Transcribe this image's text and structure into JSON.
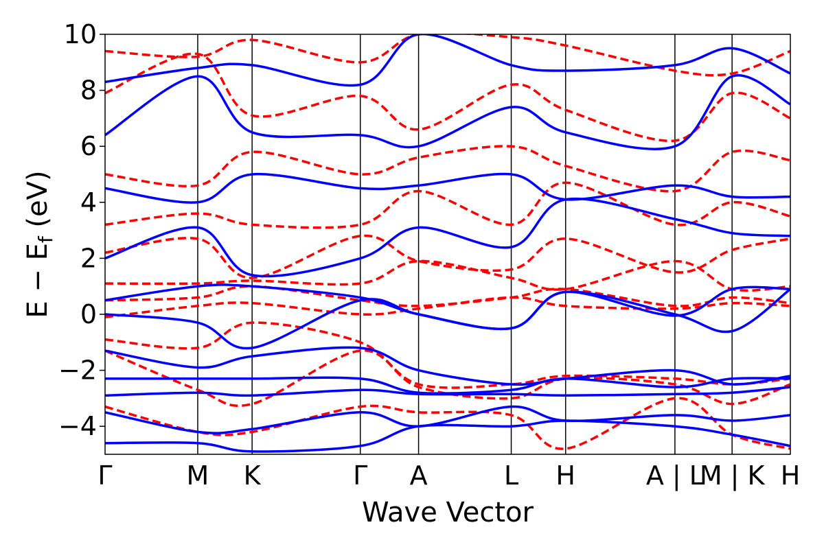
{
  "chart_data": {
    "type": "line",
    "title": "",
    "xlabel": "Wave Vector",
    "ylabel": "E − E",
    "ylabel_sub": "f",
    "ylabel_unit": " (eV)",
    "ylim": [
      -5,
      10
    ],
    "xlim": [
      0,
      12.35
    ],
    "yticks": [
      {
        "value": -4,
        "label": "−4"
      },
      {
        "value": -2,
        "label": "−2"
      },
      {
        "value": 0,
        "label": "0"
      },
      {
        "value": 2,
        "label": "2"
      },
      {
        "value": 4,
        "label": "4"
      },
      {
        "value": 6,
        "label": "6"
      },
      {
        "value": 8,
        "label": "8"
      },
      {
        "value": 10,
        "label": "10"
      }
    ],
    "kpoints": [
      {
        "label": "Γ",
        "x": 0
      },
      {
        "label": "M",
        "x": 1.67
      },
      {
        "label": "K",
        "x": 2.65
      },
      {
        "label": "Γ",
        "x": 4.6
      },
      {
        "label": "A",
        "x": 5.65
      },
      {
        "label": "L",
        "x": 7.32
      },
      {
        "label": "H",
        "x": 8.3
      },
      {
        "label": "A | L",
        "x": 10.27
      },
      {
        "label": "M | K",
        "x": 11.3
      },
      {
        "label": "H",
        "x": 12.35
      }
    ],
    "series": [
      {
        "name": "blue-band-1",
        "color": "#0000ff",
        "style": "solid",
        "x": [
          0,
          1.67,
          2.65,
          4.6,
          5.65,
          7.32,
          8.3,
          10.27,
          11.3,
          12.35
        ],
        "y": [
          -4.6,
          -4.6,
          -4.9,
          -4.7,
          -4.0,
          -4.0,
          -3.8,
          -4.0,
          -4.3,
          -4.7
        ]
      },
      {
        "name": "blue-band-2",
        "color": "#0000ff",
        "style": "solid",
        "x": [
          0,
          1.67,
          2.65,
          4.6,
          5.65,
          7.32,
          8.3,
          10.27,
          11.3,
          12.35
        ],
        "y": [
          -3.5,
          -4.2,
          -4.1,
          -3.5,
          -4.0,
          -3.3,
          -3.8,
          -3.6,
          -3.8,
          -3.6
        ]
      },
      {
        "name": "blue-band-3",
        "color": "#0000ff",
        "style": "solid",
        "x": [
          0,
          1.67,
          2.65,
          4.6,
          5.65,
          7.32,
          8.3,
          10.27,
          11.3,
          12.35
        ],
        "y": [
          -2.9,
          -2.8,
          -2.9,
          -2.7,
          -2.85,
          -2.85,
          -2.9,
          -2.85,
          -2.8,
          -2.6
        ]
      },
      {
        "name": "blue-band-4",
        "color": "#0000ff",
        "style": "solid",
        "x": [
          0,
          1.67,
          2.65,
          4.6,
          5.65,
          7.32,
          8.3,
          10.27,
          11.3,
          12.35
        ],
        "y": [
          -2.3,
          -2.3,
          -2.3,
          -2.3,
          -2.8,
          -2.7,
          -2.3,
          -2.6,
          -2.3,
          -2.3
        ]
      },
      {
        "name": "blue-band-5",
        "color": "#0000ff",
        "style": "solid",
        "x": [
          0,
          1.67,
          2.65,
          4.6,
          5.65,
          7.32,
          8.3,
          10.27,
          11.3,
          12.35
        ],
        "y": [
          -1.3,
          -1.9,
          -1.5,
          -1.2,
          -2.0,
          -2.5,
          -2.3,
          -2.0,
          -2.5,
          -2.2
        ]
      },
      {
        "name": "blue-band-6",
        "color": "#0000ff",
        "style": "solid",
        "x": [
          0,
          1.67,
          2.65,
          4.6,
          5.65,
          7.32,
          8.3,
          10.27,
          11.3,
          12.35
        ],
        "y": [
          0.0,
          -0.3,
          -1.2,
          0.5,
          0.0,
          -0.5,
          0.8,
          0.0,
          -0.6,
          0.9
        ]
      },
      {
        "name": "blue-band-7",
        "color": "#0000ff",
        "style": "solid",
        "x": [
          0,
          1.67,
          2.65,
          4.6,
          5.65,
          7.32,
          8.3,
          10.27,
          11.3,
          12.35
        ],
        "y": [
          0.5,
          1.0,
          1.0,
          0.6,
          0.0,
          -0.5,
          0.8,
          -0.05,
          0.9,
          0.9
        ]
      },
      {
        "name": "blue-band-8",
        "color": "#0000ff",
        "style": "solid",
        "x": [
          0,
          1.67,
          2.65,
          4.6,
          5.65,
          7.32,
          8.3,
          10.27,
          11.3,
          12.35
        ],
        "y": [
          2.0,
          3.1,
          1.4,
          2.0,
          3.1,
          2.4,
          4.1,
          3.4,
          2.9,
          2.8
        ]
      },
      {
        "name": "blue-band-9",
        "color": "#0000ff",
        "style": "solid",
        "x": [
          0,
          1.67,
          2.65,
          4.6,
          5.65,
          7.32,
          8.3,
          10.27,
          11.3,
          12.35
        ],
        "y": [
          4.5,
          4.0,
          5.0,
          4.5,
          4.6,
          5.0,
          4.1,
          4.6,
          4.2,
          4.2
        ]
      },
      {
        "name": "blue-band-10",
        "color": "#0000ff",
        "style": "solid",
        "x": [
          0,
          1.67,
          2.65,
          4.6,
          5.65,
          7.32,
          8.3,
          10.27,
          11.3,
          12.35
        ],
        "y": [
          6.4,
          8.5,
          6.5,
          6.4,
          6.0,
          7.4,
          6.5,
          6.0,
          8.5,
          7.5
        ]
      },
      {
        "name": "blue-band-11",
        "color": "#0000ff",
        "style": "solid",
        "x": [
          0,
          1.67,
          2.65,
          4.6,
          5.65,
          7.32,
          8.3,
          10.27,
          11.3,
          12.35
        ],
        "y": [
          8.3,
          8.8,
          8.9,
          8.2,
          10.0,
          8.9,
          8.7,
          8.9,
          9.5,
          8.6
        ]
      },
      {
        "name": "red-band-1",
        "color": "#ff0000",
        "style": "dashed",
        "x": [
          0,
          1.67,
          2.65,
          4.6,
          5.65,
          7.32,
          8.3,
          10.27,
          11.3,
          12.35
        ],
        "y": [
          -3.3,
          -4.2,
          -4.2,
          -3.3,
          -3.5,
          -3.6,
          -4.8,
          -3.0,
          -4.3,
          -4.8
        ]
      },
      {
        "name": "red-band-2",
        "color": "#ff0000",
        "style": "dashed",
        "x": [
          0,
          1.67,
          2.65,
          4.6,
          5.65,
          7.32,
          8.3,
          10.27,
          11.3,
          12.35
        ],
        "y": [
          -1.3,
          -2.7,
          -3.2,
          -1.3,
          -2.6,
          -3.0,
          -2.3,
          -2.5,
          -3.2,
          -2.5
        ]
      },
      {
        "name": "red-band-3",
        "color": "#ff0000",
        "style": "dashed",
        "x": [
          0,
          1.67,
          2.65,
          4.6,
          5.65,
          7.32,
          8.3,
          10.27,
          11.3,
          12.35
        ],
        "y": [
          -0.9,
          -1.2,
          -0.3,
          -1.0,
          -2.5,
          -2.5,
          -2.2,
          -2.3,
          -2.5,
          -2.3
        ]
      },
      {
        "name": "red-band-4",
        "color": "#ff0000",
        "style": "dashed",
        "x": [
          0,
          1.67,
          2.65,
          4.6,
          5.65,
          7.32,
          8.3,
          10.27,
          11.3,
          12.35
        ],
        "y": [
          -0.1,
          0.3,
          0.4,
          0.0,
          0.2,
          0.6,
          0.3,
          0.2,
          0.4,
          0.3
        ]
      },
      {
        "name": "red-band-5",
        "color": "#ff0000",
        "style": "dashed",
        "x": [
          0,
          1.67,
          2.65,
          4.6,
          5.65,
          7.32,
          8.3,
          10.27,
          11.3,
          12.35
        ],
        "y": [
          0.5,
          0.6,
          1.0,
          0.5,
          0.3,
          0.6,
          0.9,
          0.3,
          0.6,
          0.4
        ]
      },
      {
        "name": "red-band-6",
        "color": "#ff0000",
        "style": "dashed",
        "x": [
          0,
          1.67,
          2.65,
          4.6,
          5.65,
          7.32,
          8.3,
          10.27,
          11.3,
          12.35
        ],
        "y": [
          1.1,
          1.1,
          1.2,
          1.1,
          1.9,
          1.3,
          0.9,
          1.9,
          0.9,
          1.0
        ]
      },
      {
        "name": "red-band-7",
        "color": "#ff0000",
        "style": "dashed",
        "x": [
          0,
          1.67,
          2.65,
          4.6,
          5.65,
          7.32,
          8.3,
          10.27,
          11.3,
          12.35
        ],
        "y": [
          2.2,
          2.7,
          1.3,
          2.8,
          1.9,
          1.6,
          2.7,
          1.5,
          2.3,
          2.7
        ]
      },
      {
        "name": "red-band-8",
        "color": "#ff0000",
        "style": "dashed",
        "x": [
          0,
          1.67,
          2.65,
          4.6,
          5.65,
          7.32,
          8.3,
          10.27,
          11.3,
          12.35
        ],
        "y": [
          3.2,
          3.6,
          3.2,
          3.2,
          4.4,
          3.2,
          4.7,
          3.2,
          4.0,
          3.5
        ]
      },
      {
        "name": "red-band-9",
        "color": "#ff0000",
        "style": "dashed",
        "x": [
          0,
          1.67,
          2.65,
          4.6,
          5.65,
          7.32,
          8.3,
          10.27,
          11.3,
          12.35
        ],
        "y": [
          5.0,
          4.6,
          5.8,
          5.0,
          5.6,
          6.0,
          5.3,
          4.4,
          5.8,
          5.5
        ]
      },
      {
        "name": "red-band-10",
        "color": "#ff0000",
        "style": "dashed",
        "x": [
          0,
          1.67,
          2.65,
          4.6,
          5.65,
          7.32,
          8.3,
          10.27,
          11.3,
          12.35
        ],
        "y": [
          7.9,
          9.3,
          7.1,
          7.8,
          6.6,
          8.2,
          7.3,
          6.2,
          7.9,
          7.0
        ]
      },
      {
        "name": "red-band-11",
        "color": "#ff0000",
        "style": "dashed",
        "x": [
          0,
          1.67,
          2.65,
          4.6,
          5.65,
          7.32,
          8.3,
          10.27,
          11.3,
          12.35
        ],
        "y": [
          9.4,
          9.2,
          9.8,
          9.0,
          10.0,
          9.9,
          9.6,
          8.7,
          8.6,
          9.4
        ]
      }
    ]
  }
}
